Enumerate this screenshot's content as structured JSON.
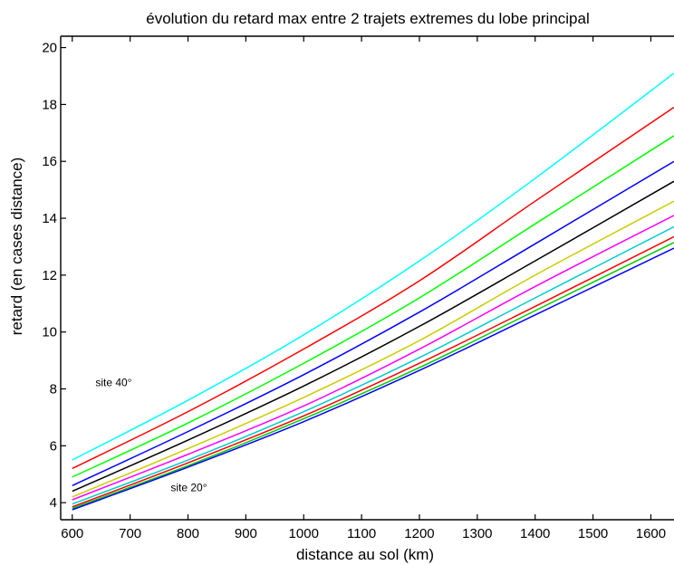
{
  "chart_data": {
    "type": "line",
    "title": "évolution du retard max entre 2 trajets extremes du lobe principal",
    "xlabel": "distance au sol (km)",
    "ylabel": "retard (en cases distance)",
    "xlim": [
      580,
      1640
    ],
    "ylim": [
      3.4,
      20.4
    ],
    "xticks": [
      600,
      700,
      800,
      900,
      1000,
      1100,
      1200,
      1300,
      1400,
      1500,
      1600
    ],
    "yticks": [
      4,
      6,
      8,
      10,
      12,
      14,
      16,
      18,
      20
    ],
    "grid": false,
    "x": [
      600,
      800,
      1000,
      1200,
      1400,
      1640
    ],
    "series": [
      {
        "color": "#00ffff",
        "values": [
          5.5,
          7.6,
          9.9,
          12.5,
          15.4,
          19.1
        ]
      },
      {
        "color": "#ff0000",
        "values": [
          5.2,
          7.2,
          9.4,
          11.8,
          14.6,
          17.9
        ]
      },
      {
        "color": "#00ff00",
        "values": [
          4.9,
          6.8,
          8.9,
          11.2,
          13.8,
          16.9
        ]
      },
      {
        "color": "#0000ff",
        "values": [
          4.6,
          6.5,
          8.5,
          10.7,
          13.1,
          16.0
        ]
      },
      {
        "color": "#000000",
        "values": [
          4.4,
          6.2,
          8.1,
          10.2,
          12.5,
          15.3
        ]
      },
      {
        "color": "#cccc00",
        "values": [
          4.2,
          5.9,
          7.7,
          9.7,
          12.0,
          14.6
        ]
      },
      {
        "color": "#ff00ff",
        "values": [
          4.1,
          5.7,
          7.4,
          9.4,
          11.6,
          14.1
        ]
      },
      {
        "color": "#00cccc",
        "values": [
          3.95,
          5.5,
          7.2,
          9.1,
          11.2,
          13.7
        ]
      },
      {
        "color": "#ff0000",
        "values": [
          3.85,
          5.4,
          7.05,
          8.9,
          10.9,
          13.35
        ]
      },
      {
        "color": "#00cc00",
        "values": [
          3.8,
          5.3,
          6.95,
          8.75,
          10.75,
          13.15
        ]
      },
      {
        "color": "#0000ff",
        "values": [
          3.75,
          5.25,
          6.85,
          8.65,
          10.6,
          12.95
        ]
      }
    ],
    "annotations": [
      {
        "text": "site 40°",
        "x": 640,
        "y": 8.1
      },
      {
        "text": "site 20°",
        "x": 770,
        "y": 4.4
      }
    ]
  }
}
